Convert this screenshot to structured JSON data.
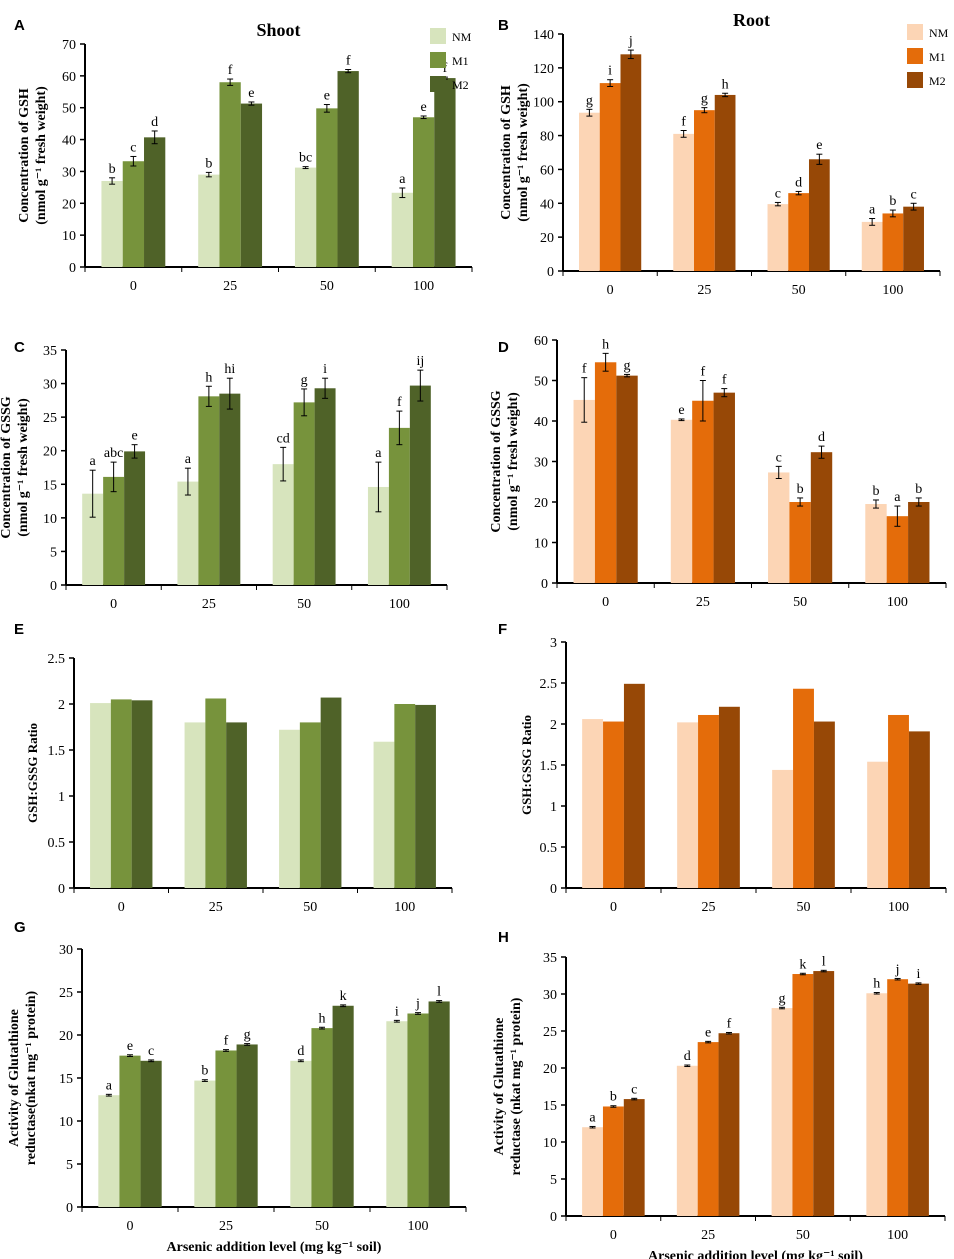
{
  "colors": {
    "shoot": {
      "NM": "#d7e4bd",
      "M1": "#77933c",
      "M2": "#4f6228"
    },
    "root": {
      "NM": "#fcd5b5",
      "M1": "#e46c0a",
      "M2": "#974806"
    },
    "axis": "#000000"
  },
  "chart_data": [
    {
      "panel": "A",
      "type": "bar",
      "title": "Shoot",
      "palette": "shoot",
      "categories": [
        "0",
        "25",
        "50",
        "100"
      ],
      "ylabel": [
        "Concentration of GSH",
        "(nmol g⁻¹ fresh weight)"
      ],
      "xlabel": "",
      "ylim": [
        0,
        70
      ],
      "ystep": 10,
      "legend": "top-right",
      "series": [
        {
          "name": "NM",
          "values": [
            27,
            29,
            31.2,
            23.3
          ],
          "errors": [
            1,
            0.7,
            0.3,
            1.5
          ],
          "letters": [
            "b",
            "b",
            "bc",
            "a"
          ]
        },
        {
          "name": "M1",
          "values": [
            33.2,
            58,
            49.8,
            47
          ],
          "errors": [
            1.5,
            1,
            1.2,
            0.4
          ],
          "letters": [
            "c",
            "f",
            "e",
            "e"
          ]
        },
        {
          "name": "M2",
          "values": [
            40.7,
            51.3,
            61.5,
            59.3
          ],
          "errors": [
            2,
            0.5,
            0.5,
            0.3
          ],
          "letters": [
            "d",
            "e",
            "f",
            "f"
          ]
        }
      ]
    },
    {
      "panel": "B",
      "type": "bar",
      "title": "Root",
      "palette": "root",
      "categories": [
        "0",
        "25",
        "50",
        "100"
      ],
      "ylabel": [
        "Concentration of GSH",
        "(nmol g⁻¹ fresh weight)"
      ],
      "xlabel": "",
      "ylim": [
        0,
        140
      ],
      "ystep": 20,
      "legend": "top-right",
      "series": [
        {
          "name": "NM",
          "values": [
            93.5,
            81,
            39.5,
            29
          ],
          "errors": [
            2,
            2,
            1,
            2
          ],
          "letters": [
            "g",
            "f",
            "c",
            "a"
          ]
        },
        {
          "name": "M1",
          "values": [
            111,
            95,
            46,
            34
          ],
          "errors": [
            2,
            1.5,
            1,
            2
          ],
          "letters": [
            "i",
            "g",
            "d",
            "b"
          ]
        },
        {
          "name": "M2",
          "values": [
            128,
            104,
            66,
            38
          ],
          "errors": [
            2.5,
            1,
            3,
            2
          ],
          "letters": [
            "j",
            "h",
            "e",
            "c"
          ]
        }
      ]
    },
    {
      "panel": "C",
      "type": "bar",
      "title": "",
      "palette": "shoot",
      "categories": [
        "0",
        "25",
        "50",
        "100"
      ],
      "ylabel": [
        "Concentration of GSSG",
        "(nmol g⁻¹ fresh weight)"
      ],
      "xlabel": "",
      "ylim": [
        0,
        35
      ],
      "ystep": 5,
      "legend": "none",
      "series": [
        {
          "name": "NM",
          "values": [
            13.6,
            15.4,
            18,
            14.6
          ],
          "errors": [
            3.5,
            2,
            2.5,
            3.7
          ],
          "letters": [
            "a",
            "a",
            "cd",
            "a"
          ]
        },
        {
          "name": "M1",
          "values": [
            16.1,
            28.1,
            27.2,
            23.4
          ],
          "errors": [
            2.2,
            1.5,
            2,
            2.5
          ],
          "letters": [
            "abc",
            "h",
            "g",
            "f"
          ]
        },
        {
          "name": "M2",
          "values": [
            19.9,
            28.5,
            29.3,
            29.7
          ],
          "errors": [
            1,
            2.3,
            1.5,
            2.3
          ],
          "letters": [
            "e",
            "hi",
            "i",
            "ij"
          ]
        }
      ]
    },
    {
      "panel": "D",
      "type": "bar",
      "title": "",
      "palette": "root",
      "categories": [
        "0",
        "25",
        "50",
        "100"
      ],
      "ylabel": [
        "Concentration of GSSG",
        "(nmol g⁻¹ fresh weight)"
      ],
      "xlabel": "",
      "ylim": [
        0,
        60
      ],
      "ystep": 10,
      "legend": "none",
      "series": [
        {
          "name": "NM",
          "values": [
            45.2,
            40.3,
            27.3,
            19.5
          ],
          "errors": [
            5.5,
            0.2,
            1.5,
            1
          ],
          "letters": [
            "f",
            "e",
            "c",
            "b"
          ]
        },
        {
          "name": "M1",
          "values": [
            54.5,
            45,
            20,
            16.5
          ],
          "errors": [
            2.2,
            5,
            1,
            2.5
          ],
          "letters": [
            "h",
            "f",
            "b",
            "a"
          ]
        },
        {
          "name": "M2",
          "values": [
            51.2,
            47,
            32.3,
            20
          ],
          "errors": [
            0.3,
            1,
            1.5,
            1
          ],
          "letters": [
            "g",
            "f",
            "d",
            "b"
          ]
        }
      ]
    },
    {
      "panel": "E",
      "type": "bar",
      "title": "",
      "palette": "shoot",
      "categories": [
        "0",
        "25",
        "50",
        "100"
      ],
      "ylabel": [
        "GSH:GSSG Ratio"
      ],
      "xlabel": "",
      "ylim": [
        0,
        2.5
      ],
      "ystep": 0.5,
      "legend": "none",
      "series": [
        {
          "name": "NM",
          "values": [
            2.01,
            1.8,
            1.72,
            1.59
          ]
        },
        {
          "name": "M1",
          "values": [
            2.05,
            2.06,
            1.8,
            2.0
          ]
        },
        {
          "name": "M2",
          "values": [
            2.04,
            1.8,
            2.07,
            1.99
          ]
        }
      ]
    },
    {
      "panel": "F",
      "type": "bar",
      "title": "",
      "palette": "root",
      "categories": [
        "0",
        "25",
        "50",
        "100"
      ],
      "ylabel": [
        "GSH:GSSG Ratio"
      ],
      "xlabel": "",
      "ylim": [
        0,
        3
      ],
      "ystep": 0.5,
      "legend": "none",
      "series": [
        {
          "name": "NM",
          "values": [
            2.06,
            2.02,
            1.44,
            1.54
          ]
        },
        {
          "name": "M1",
          "values": [
            2.03,
            2.11,
            2.43,
            2.11
          ]
        },
        {
          "name": "M2",
          "values": [
            2.49,
            2.21,
            2.03,
            1.91
          ]
        }
      ]
    },
    {
      "panel": "G",
      "type": "bar",
      "title": "",
      "palette": "shoot",
      "categories": [
        "0",
        "25",
        "50",
        "100"
      ],
      "ylabel": [
        "Activity of Glutathione",
        "reductase(nkat mg⁻¹ protein)"
      ],
      "xlabel": "Arsenic addition level (mg kg⁻¹ soil)",
      "ylim": [
        0,
        30
      ],
      "ystep": 5,
      "legend": "none",
      "series": [
        {
          "name": "NM",
          "values": [
            13,
            14.7,
            17,
            21.6
          ],
          "errors": [
            0.1,
            0.1,
            0.1,
            0.1
          ],
          "letters": [
            "a",
            "b",
            "d",
            "i"
          ]
        },
        {
          "name": "M1",
          "values": [
            17.6,
            18.2,
            20.8,
            22.5
          ],
          "errors": [
            0.1,
            0.1,
            0.1,
            0.1
          ],
          "letters": [
            "e",
            "f",
            "h",
            "j"
          ]
        },
        {
          "name": "M2",
          "values": [
            17,
            18.9,
            23.4,
            23.9
          ],
          "errors": [
            0.1,
            0.1,
            0.1,
            0.1
          ],
          "letters": [
            "c",
            "g",
            "k",
            "l"
          ]
        }
      ]
    },
    {
      "panel": "H",
      "type": "bar",
      "title": "",
      "palette": "root",
      "categories": [
        "0",
        "25",
        "50",
        "100"
      ],
      "ylabel": [
        "Activity of Glutathione",
        "reductase (nkat mg⁻¹ protein)"
      ],
      "xlabel": "Arsenic addition level (mg kg⁻¹ soil)",
      "ylim": [
        0,
        35
      ],
      "ystep": 5,
      "legend": "none",
      "series": [
        {
          "name": "NM",
          "values": [
            12,
            20.3,
            28.1,
            30.1
          ],
          "errors": [
            0.1,
            0.1,
            0.1,
            0.1
          ],
          "letters": [
            "a",
            "d",
            "g",
            "h"
          ]
        },
        {
          "name": "M1",
          "values": [
            14.8,
            23.5,
            32.7,
            32
          ],
          "errors": [
            0.1,
            0.1,
            0.1,
            0.1
          ],
          "letters": [
            "b",
            "e",
            "k",
            "j"
          ]
        },
        {
          "name": "M2",
          "values": [
            15.8,
            24.7,
            33.1,
            31.4
          ],
          "errors": [
            0.1,
            0.1,
            0.1,
            0.1
          ],
          "letters": [
            "c",
            "f",
            "l",
            "i"
          ]
        }
      ]
    }
  ]
}
